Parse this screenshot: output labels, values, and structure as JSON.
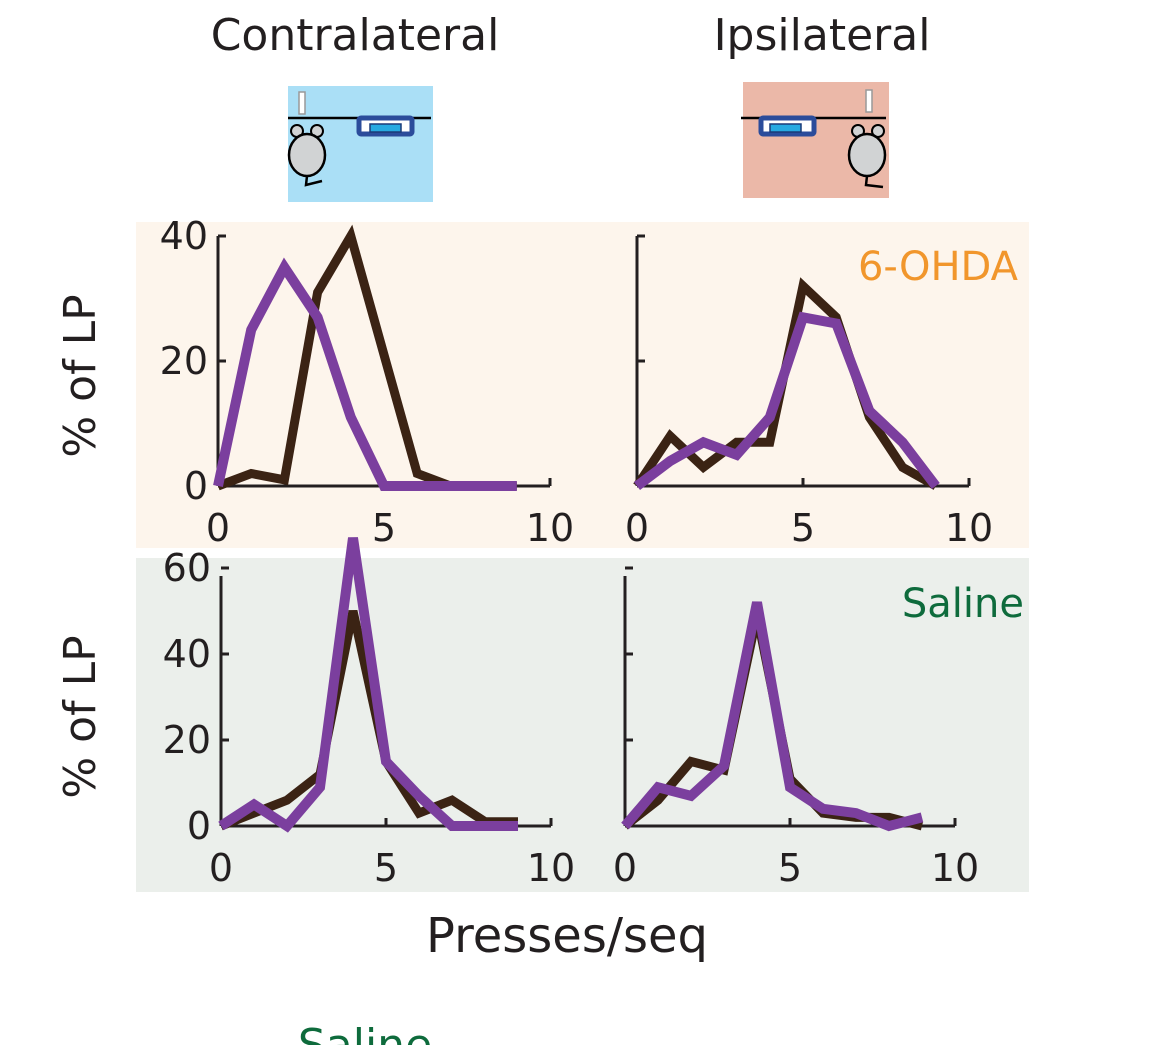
{
  "columns": [
    {
      "title": "Contralateral",
      "box_color": "#aadff6"
    },
    {
      "title": "Ipsilateral",
      "box_color": "#ebb8a8"
    }
  ],
  "chart_data": [
    {
      "type": "line",
      "panel": "6-OHDA contralateral",
      "condition": "6-OHDA",
      "xlim": [
        0,
        10
      ],
      "ylim": [
        0,
        40
      ],
      "xticks": [
        0,
        5,
        10
      ],
      "yticks": [
        0,
        20,
        40
      ],
      "ylabel": "% of LP",
      "x": [
        0,
        1,
        2,
        3,
        4,
        5,
        6,
        7,
        8,
        9
      ],
      "series": [
        {
          "color": "#3b2314",
          "values": [
            0,
            2,
            1,
            31,
            40,
            21,
            2,
            0,
            0,
            0
          ]
        },
        {
          "color": "#7b3f9e",
          "values": [
            0,
            25,
            35,
            27,
            11,
            0,
            0,
            0,
            0,
            0
          ]
        }
      ]
    },
    {
      "type": "line",
      "panel": "6-OHDA ipsilateral",
      "condition": "6-OHDA",
      "xlim": [
        0,
        10
      ],
      "ylim": [
        0,
        40
      ],
      "xticks": [
        0,
        5,
        10
      ],
      "yticks": [
        0,
        20,
        40
      ],
      "ylabel": "",
      "x": [
        0,
        1,
        2,
        3,
        4,
        5,
        6,
        7,
        8,
        9
      ],
      "series": [
        {
          "color": "#3b2314",
          "values": [
            0,
            8,
            3,
            7,
            7,
            32,
            27,
            11,
            3,
            0
          ]
        },
        {
          "color": "#7b3f9e",
          "values": [
            0,
            4,
            7,
            5,
            11,
            27,
            26,
            12,
            7,
            0
          ]
        }
      ]
    },
    {
      "type": "line",
      "panel": "Saline contralateral",
      "condition": "Saline",
      "xlim": [
        0,
        10
      ],
      "ylim": [
        0,
        60
      ],
      "xticks": [
        0,
        5,
        10
      ],
      "yticks": [
        0,
        20,
        40,
        60
      ],
      "ylabel": "% of LP",
      "x": [
        0,
        1,
        2,
        3,
        4,
        5,
        6,
        7,
        8,
        9
      ],
      "series": [
        {
          "color": "#3b2314",
          "values": [
            0,
            3,
            6,
            12,
            50,
            15,
            3,
            6,
            1,
            1
          ]
        },
        {
          "color": "#7b3f9e",
          "values": [
            0,
            5,
            0,
            9,
            67,
            15,
            7,
            0,
            0,
            0
          ]
        }
      ]
    },
    {
      "type": "line",
      "panel": "Saline ipsilateral",
      "condition": "Saline",
      "xlim": [
        0,
        10
      ],
      "ylim": [
        0,
        60
      ],
      "xticks": [
        0,
        5,
        10
      ],
      "yticks": [
        0,
        20,
        40,
        60
      ],
      "ylabel": "",
      "x": [
        0,
        1,
        2,
        3,
        4,
        5,
        6,
        7,
        8,
        9
      ],
      "series": [
        {
          "color": "#3b2314",
          "values": [
            0,
            6,
            15,
            13,
            49,
            11,
            3,
            2,
            2,
            0
          ]
        },
        {
          "color": "#7b3f9e",
          "values": [
            0,
            9,
            7,
            14,
            52,
            9,
            4,
            3,
            0,
            2
          ]
        }
      ]
    }
  ],
  "conditions": [
    {
      "label": "6-OHDA",
      "label_color": "#f1962c",
      "bg": "#fdf5ec"
    },
    {
      "label": "Saline",
      "label_color": "#0e6b3c",
      "bg": "#ebefeb"
    }
  ],
  "xlabel": "Presses/seq",
  "footer_label": "Saline"
}
